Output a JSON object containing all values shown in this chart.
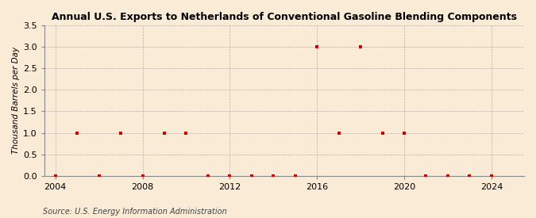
{
  "title": "Annual U.S. Exports to Netherlands of Conventional Gasoline Blending Components",
  "ylabel": "Thousand Barrels per Day",
  "source": "Source: U.S. Energy Information Administration",
  "xlim": [
    2003.5,
    2025.5
  ],
  "ylim": [
    0.0,
    3.5
  ],
  "yticks": [
    0.0,
    0.5,
    1.0,
    1.5,
    2.0,
    2.5,
    3.0,
    3.5
  ],
  "xticks": [
    2004,
    2008,
    2012,
    2016,
    2020,
    2024
  ],
  "background_color": "#faebd7",
  "grid_color": "#999999",
  "marker_color": "#cc0000",
  "years": [
    2004,
    2005,
    2006,
    2007,
    2008,
    2009,
    2010,
    2011,
    2012,
    2013,
    2014,
    2015,
    2016,
    2017,
    2018,
    2019,
    2020,
    2021,
    2022,
    2023,
    2024
  ],
  "values": [
    0.0,
    1.0,
    0.0,
    1.0,
    0.0,
    1.0,
    1.0,
    0.0,
    0.0,
    0.0,
    0.0,
    0.0,
    3.0,
    1.0,
    3.0,
    1.0,
    1.0,
    0.0,
    0.0,
    0.0,
    0.0
  ]
}
